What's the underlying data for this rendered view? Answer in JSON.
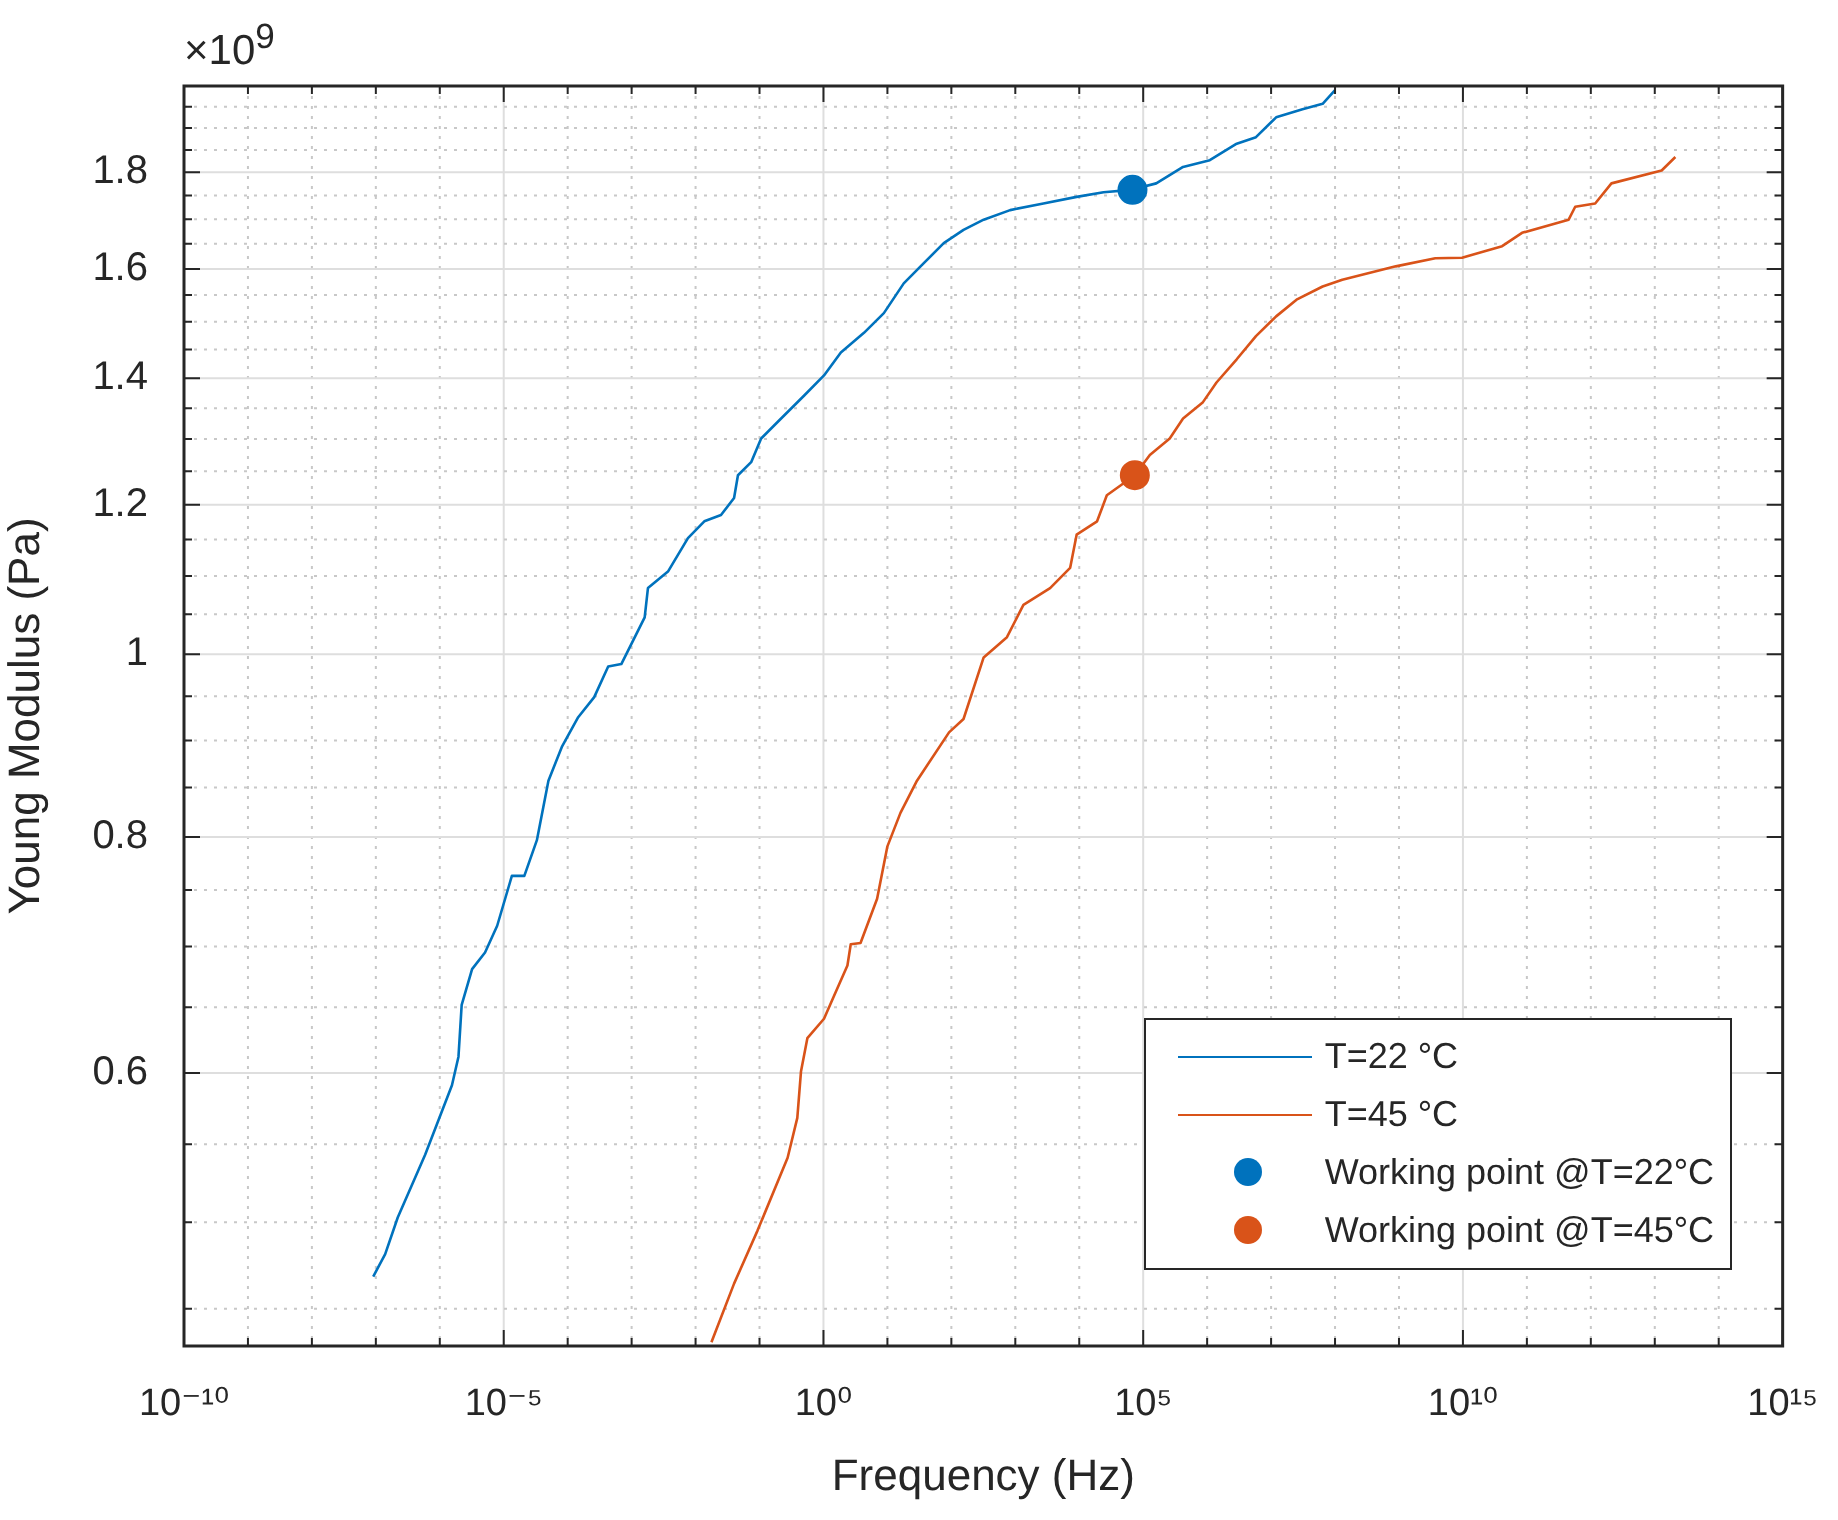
{
  "chart_data": {
    "type": "line",
    "xlabel": "Frequency (Hz)",
    "ylabel": "Young Modulus (Pa)",
    "annotations": [
      "×10$^{9}$"
    ],
    "log": "xy",
    "grid": true,
    "legend": "bottom right",
    "xlim": [
      1e-10,
      1000000000000000.0
    ],
    "ylim": [
      0.43,
      2
    ],
    "xticks": [
      {
        "value": 1e-10,
        "label": "10⁻¹⁰"
      },
      {
        "value": 1e-09,
        "label": null
      },
      {
        "value": 1e-08,
        "label": null
      },
      {
        "value": 1e-07,
        "label": null
      },
      {
        "value": 1e-06,
        "label": null
      },
      {
        "value": 1e-05,
        "label": "10⁻⁵"
      },
      {
        "value": 0.0001,
        "label": null
      },
      {
        "value": 0.001,
        "label": null
      },
      {
        "value": 0.01,
        "label": null
      },
      {
        "value": 0.1,
        "label": null
      },
      {
        "value": 1,
        "label": "10⁰"
      },
      {
        "value": 10,
        "label": null
      },
      {
        "value": 100,
        "label": null
      },
      {
        "value": 1000,
        "label": null
      },
      {
        "value": 10000,
        "label": null
      },
      {
        "value": 100000,
        "label": "10⁵"
      },
      {
        "value": 1000000.0,
        "label": null
      },
      {
        "value": 10000000.0,
        "label": null
      },
      {
        "value": 100000000.0,
        "label": null
      },
      {
        "value": 1000000000.0,
        "label": null
      },
      {
        "value": 10000000000.0,
        "label": "10¹⁰"
      },
      {
        "value": 100000000000.0,
        "label": null
      },
      {
        "value": 1000000000000.0,
        "label": null
      },
      {
        "value": 10000000000000.0,
        "label": null
      },
      {
        "value": 100000000000000.0,
        "label": null
      },
      {
        "value": 1000000000000000.0,
        "label": "10¹⁵"
      }
    ],
    "yticks": [
      {
        "value": 0.45,
        "label": null
      },
      {
        "value": 0.5,
        "label": null
      },
      {
        "value": 0.55,
        "label": null
      },
      0.6,
      {
        "value": 0.65,
        "label": null
      },
      {
        "value": 0.7,
        "label": null
      },
      {
        "value": 0.75,
        "label": null
      },
      0.8,
      {
        "value": 0.85,
        "label": null
      },
      {
        "value": 0.9,
        "label": null
      },
      {
        "value": 0.95,
        "label": null
      },
      1,
      {
        "value": 1.05,
        "label": null
      },
      {
        "value": 1.1,
        "label": null
      },
      {
        "value": 1.15,
        "label": null
      },
      1.2,
      {
        "value": 1.25,
        "label": null
      },
      {
        "value": 1.3,
        "label": null
      },
      {
        "value": 1.35,
        "label": null
      },
      1.4,
      {
        "value": 1.45,
        "label": null
      },
      {
        "value": 1.5,
        "label": null
      },
      {
        "value": 1.55,
        "label": null
      },
      1.6,
      {
        "value": 1.65,
        "label": null
      },
      {
        "value": 1.7,
        "label": null
      },
      {
        "value": 1.75,
        "label": null
      },
      1.8,
      {
        "value": 1.85,
        "label": null
      },
      {
        "value": 1.9,
        "label": null
      },
      {
        "value": 1.95,
        "label": null
      }
    ],
    "series": [
      {
        "name": "T=22 °C",
        "type": "line",
        "color": "#0072bd",
        "x": [
          9.1e-08,
          1.4e-07,
          2.2e-07,
          5.9e-07,
          1.55e-06,
          1.96e-06,
          2.2e-06,
          3.2e-06,
          5.1e-06,
          7.9e-06,
          1.34e-05,
          2.1e-05,
          3.3e-05,
          5e-05,
          8.1e-05,
          0.000146,
          0.00026,
          0.00043,
          0.00069,
          0.0016,
          0.0018,
          0.0037,
          0.0076,
          0.0137,
          0.025,
          0.04,
          0.046,
          0.074,
          0.106,
          0.19,
          0.5,
          1.02,
          1.87,
          4.3,
          8.8,
          18,
          33,
          76,
          155,
          320,
          830,
          2750,
          9100,
          24000.0,
          65000.0,
          160000.0,
          420000.0,
          1100000.0,
          2900000.0,
          5800000.0,
          12000000.0,
          31000000.0,
          64000000.0,
          100000000.0
        ],
        "values": [
          0.468,
          0.481,
          0.503,
          0.543,
          0.591,
          0.612,
          0.652,
          0.681,
          0.695,
          0.718,
          0.763,
          0.763,
          0.797,
          0.857,
          0.893,
          0.926,
          0.949,
          0.985,
          0.988,
          1.046,
          1.084,
          1.106,
          1.152,
          1.176,
          1.185,
          1.21,
          1.244,
          1.264,
          1.301,
          1.327,
          1.371,
          1.405,
          1.445,
          1.48,
          1.516,
          1.572,
          1.605,
          1.651,
          1.678,
          1.699,
          1.719,
          1.733,
          1.747,
          1.757,
          1.762,
          1.776,
          1.812,
          1.827,
          1.864,
          1.879,
          1.925,
          1.944,
          1.957,
          1.99
        ]
      },
      {
        "name": "T=45 °C",
        "type": "line",
        "color": "#d95319",
        "x": [
          0.0177,
          0.04,
          0.093,
          0.275,
          0.39,
          0.445,
          0.56,
          1.02,
          1.46,
          2.37,
          2.67,
          3.8,
          6.9,
          10,
          16,
          29,
          92,
          155,
          320,
          740,
          1340,
          3500,
          7200,
          9100,
          19000.0,
          27000.0,
          74000.0,
          127000.0,
          260000.0,
          420000.0,
          860000.0,
          1400000.0,
          2900000.0,
          5800000.0,
          12000000.0,
          25000000.0,
          64000000.0,
          130000000.0,
          890000000.0,
          3700000000.0,
          9700000000.0,
          41000000000.0,
          84000000000.0,
          450000000000.0,
          570000000000.0,
          1170000000000.0,
          2100000000000.0,
          12800000000000.0,
          21000000000000.0
        ],
        "values": [
          0.432,
          0.464,
          0.495,
          0.541,
          0.568,
          0.601,
          0.626,
          0.641,
          0.659,
          0.684,
          0.702,
          0.703,
          0.742,
          0.791,
          0.824,
          0.857,
          0.909,
          0.924,
          0.996,
          1.021,
          1.062,
          1.084,
          1.111,
          1.157,
          1.176,
          1.214,
          1.244,
          1.275,
          1.301,
          1.333,
          1.36,
          1.393,
          1.433,
          1.474,
          1.51,
          1.541,
          1.566,
          1.579,
          1.605,
          1.621,
          1.622,
          1.645,
          1.672,
          1.699,
          1.726,
          1.733,
          1.776,
          1.804,
          1.834
        ]
      },
      {
        "name": "Working point @T=22°C",
        "type": "scatter",
        "marker": "circle",
        "color": "#0072bd",
        "x": [
          68000.0
        ],
        "values": [
          1.762
        ]
      },
      {
        "name": "Working point @T=45°C",
        "type": "scatter",
        "marker": "circle",
        "color": "#d95319",
        "x": [
          74000.0
        ],
        "values": [
          1.244
        ]
      }
    ]
  }
}
